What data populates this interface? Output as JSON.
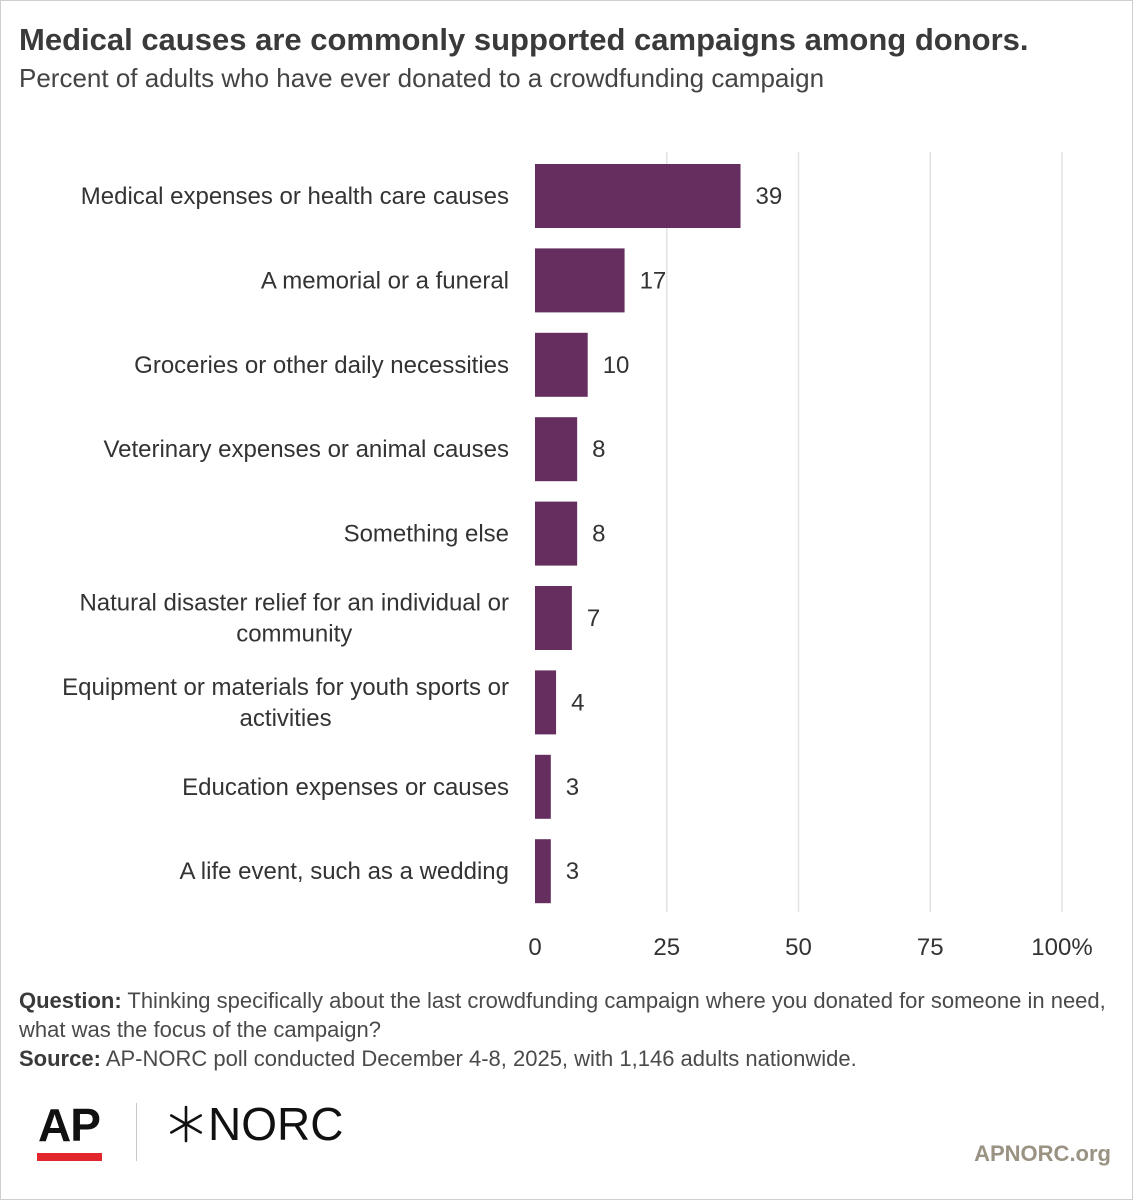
{
  "header": {
    "title": "Medical causes are commonly supported campaigns among donors.",
    "subtitle": "Percent of adults who have ever donated to a crowdfunding campaign"
  },
  "chart_data": {
    "type": "bar",
    "orientation": "horizontal",
    "categories": [
      "Medical expenses or health care causes",
      "A memorial or a funeral",
      "Groceries or other daily necessities",
      "Veterinary expenses or animal causes",
      "Something else",
      "Natural disaster relief for an individual or community",
      "Equipment or materials for youth sports or activities",
      "Education expenses or causes",
      "A life event, such as a wedding"
    ],
    "category_lines": [
      [
        "Medical expenses or health care causes"
      ],
      [
        "A memorial or a funeral"
      ],
      [
        "Groceries or other daily necessities"
      ],
      [
        "Veterinary expenses or animal causes"
      ],
      [
        "Something else"
      ],
      [
        "Natural disaster relief for an individual or",
        "community"
      ],
      [
        "Equipment or materials for youth sports or",
        "activities"
      ],
      [
        "Education expenses or causes"
      ],
      [
        "A life event, such as a wedding"
      ]
    ],
    "values": [
      39,
      17,
      10,
      8,
      8,
      7,
      4,
      3,
      3
    ],
    "xlim": [
      0,
      100
    ],
    "xticks": [
      0,
      25,
      50,
      75,
      100
    ],
    "xtick_labels": [
      "0",
      "25",
      "50",
      "75",
      "100%"
    ],
    "grid": true,
    "bar_color": "#652e5e",
    "grid_color": "#e2e2e2"
  },
  "footer": {
    "question_label": "Question:",
    "question_text": " Thinking specifically about the last crowdfunding campaign where you donated for someone in need, what was the focus of the campaign?",
    "source_label": "Source:",
    "source_text": " AP-NORC poll conducted December 4-8, 2025, with 1,146 adults nationwide.",
    "logo_ap": "AP",
    "logo_norc": "NORC",
    "site": "APNORC.org"
  }
}
